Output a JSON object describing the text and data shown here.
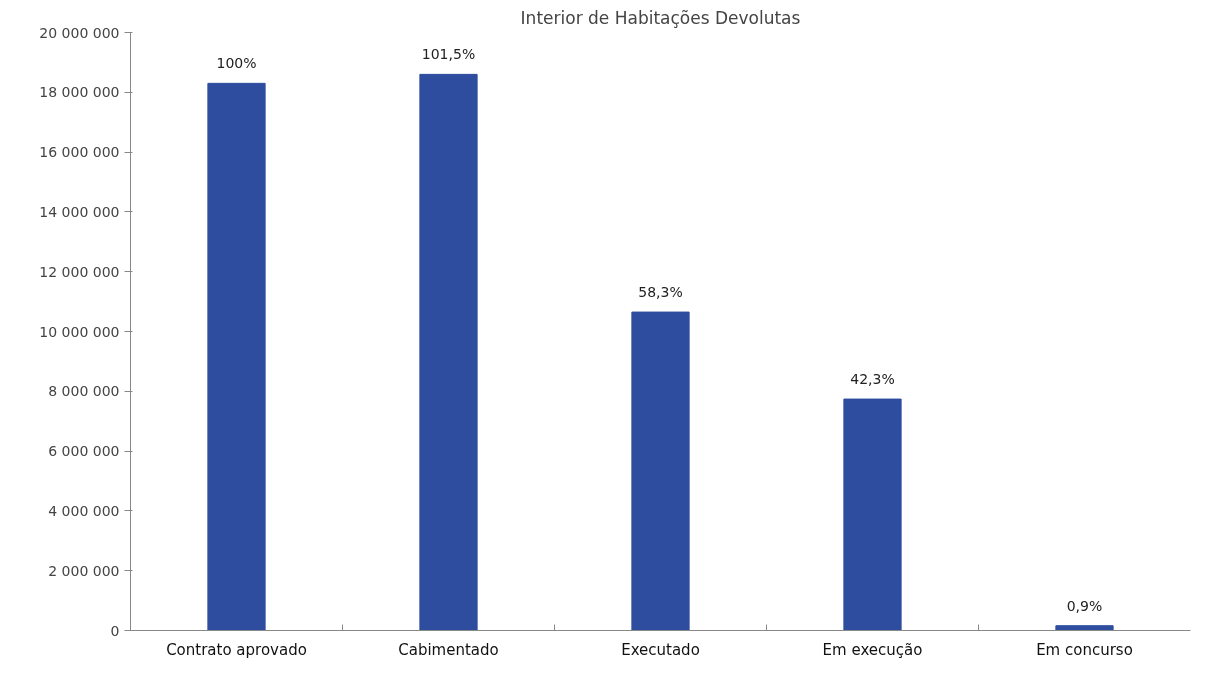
{
  "chart_data": {
    "type": "bar",
    "title": "Interior de Habitações Devolutas",
    "categories": [
      "Contrato aprovado",
      "Cabimentado",
      "Executado",
      "Em execução",
      "Em concurso"
    ],
    "values": [
      18300000,
      18600000,
      10650000,
      7740000,
      160000
    ],
    "annotations": [
      {
        "text": "100%",
        "x": "Contrato aprovado",
        "y": 18300000
      },
      {
        "text": "101,5%",
        "x": "Cabimentado",
        "y": 18600000
      },
      {
        "text": "58,3%",
        "x": "Executado",
        "y": 10650000
      },
      {
        "text": "42,3%",
        "x": "Em execução",
        "y": 7740000
      },
      {
        "text": "0,9%",
        "x": "Em concurso",
        "y": 160000
      }
    ],
    "color": "#2e4d9e",
    "ylim": [
      0,
      20000000
    ],
    "yticks": [
      {
        "value": 0,
        "label": "0"
      },
      {
        "value": 2000000,
        "label": "2 000 000"
      },
      {
        "value": 4000000,
        "label": "4 000 000"
      },
      {
        "value": 6000000,
        "label": "6 000 000"
      },
      {
        "value": 8000000,
        "label": "8 000 000"
      },
      {
        "value": 10000000,
        "label": "10 000 000"
      },
      {
        "value": 12000000,
        "label": "12 000 000"
      },
      {
        "value": 14000000,
        "label": "14 000 000"
      },
      {
        "value": 16000000,
        "label": "16 000 000"
      },
      {
        "value": 18000000,
        "label": "18 000 000"
      },
      {
        "value": 20000000,
        "label": "20 000 000"
      }
    ],
    "grid": false
  }
}
